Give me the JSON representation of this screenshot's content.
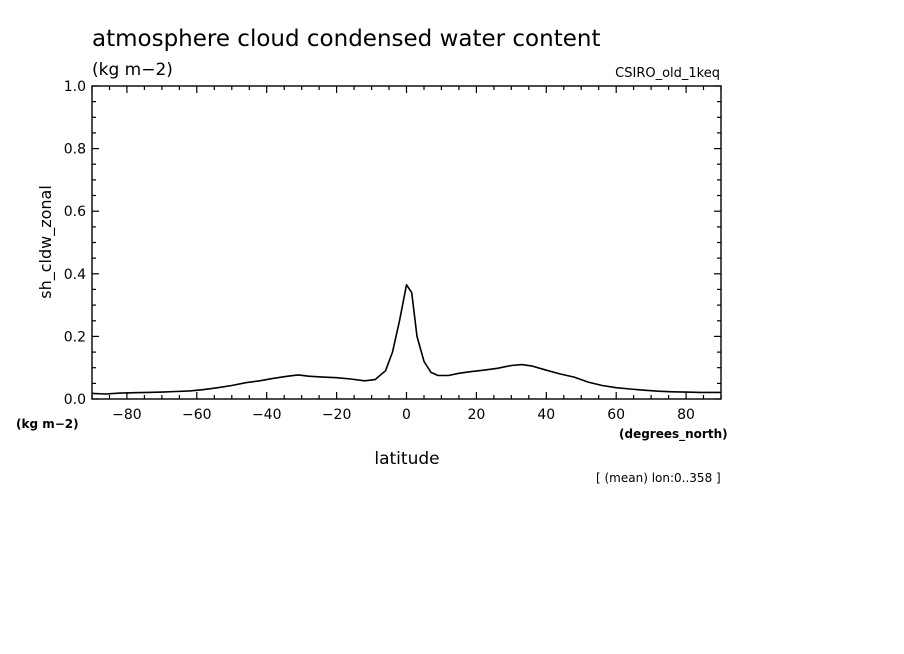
{
  "chart_data": {
    "type": "line",
    "title": "atmosphere cloud condensed water content",
    "units": "(kg m−2)",
    "model": "CSIRO_old_1keq",
    "ylabel": "sh_cldw_zonal",
    "xlabel": "latitude",
    "x_units": "(degrees_north)",
    "y_units": "(kg m−2)",
    "subnote": "[ (mean) lon:0..358 ]",
    "xlim": [
      -90,
      90
    ],
    "ylim": [
      0,
      1.0
    ],
    "x_ticks": [
      -80,
      -60,
      -40,
      -20,
      0,
      20,
      40,
      60,
      80
    ],
    "x_tick_labels": [
      "−80",
      "−60",
      "−40",
      "−20",
      "0",
      "20",
      "40",
      "60",
      "80"
    ],
    "y_ticks": [
      0,
      0.2,
      0.4,
      0.6,
      0.8,
      1.0
    ],
    "y_tick_labels": [
      "0.0",
      "0.2",
      "0.4",
      "0.6",
      "0.8",
      "1.0"
    ],
    "series": [
      {
        "name": "sh_cldw_zonal",
        "x": [
          -90,
          -86,
          -82,
          -78,
          -74,
          -70,
          -66,
          -62,
          -58,
          -54,
          -50,
          -46,
          -42,
          -38,
          -34,
          -31,
          -28,
          -24,
          -20,
          -16,
          -12,
          -9,
          -6,
          -4,
          -2,
          0,
          1.5,
          3,
          5,
          7,
          9,
          12,
          15,
          18,
          22,
          26,
          30,
          33,
          36,
          40,
          44,
          48,
          52,
          56,
          60,
          64,
          68,
          72,
          76,
          80,
          84,
          90
        ],
        "values": [
          0.018,
          0.016,
          0.019,
          0.02,
          0.021,
          0.022,
          0.024,
          0.026,
          0.03,
          0.036,
          0.043,
          0.052,
          0.058,
          0.066,
          0.073,
          0.077,
          0.073,
          0.07,
          0.068,
          0.064,
          0.058,
          0.062,
          0.09,
          0.15,
          0.25,
          0.365,
          0.34,
          0.2,
          0.12,
          0.085,
          0.075,
          0.075,
          0.082,
          0.087,
          0.092,
          0.098,
          0.107,
          0.11,
          0.105,
          0.092,
          0.08,
          0.07,
          0.054,
          0.043,
          0.036,
          0.032,
          0.028,
          0.025,
          0.023,
          0.022,
          0.021,
          0.021
        ]
      }
    ]
  }
}
